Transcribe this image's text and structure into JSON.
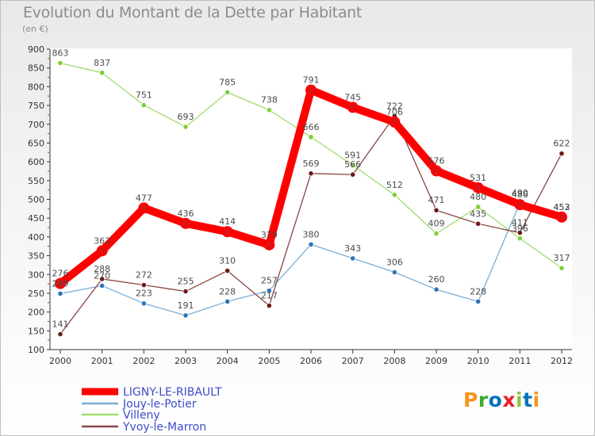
{
  "title": "Evolution du Montant de la Dette par Habitant",
  "subtitle": "(en €)",
  "logo": {
    "text": "Proxiti",
    "letter_colors": [
      "#f7941d",
      "#3aaa35",
      "#0072bc",
      "#ed1c24",
      "#8dc63f",
      "#0072bc",
      "#f7941d"
    ]
  },
  "chart_data": {
    "type": "line",
    "x": [
      2000,
      2001,
      2002,
      2003,
      2004,
      2005,
      2006,
      2007,
      2008,
      2009,
      2010,
      2011,
      2012
    ],
    "ylim": [
      100,
      900
    ],
    "yticks": [
      100,
      150,
      200,
      250,
      300,
      350,
      400,
      450,
      500,
      550,
      600,
      650,
      700,
      750,
      800,
      850,
      900
    ],
    "grid": false,
    "legend_position": "bottom-left",
    "series": [
      {
        "name": "LIGNY-LE-RIBAULT",
        "color": "#ff0000",
        "width": 10,
        "marker": "#cc0000",
        "values": [
          276,
          363,
          477,
          436,
          414,
          379,
          791,
          745,
          706,
          576,
          531,
          486,
          453
        ]
      },
      {
        "name": "Jouy-le-Potier",
        "color": "#7aaed6",
        "width": 1.3,
        "marker": "#2f74b5",
        "values": [
          249,
          270,
          223,
          191,
          228,
          257,
          380,
          343,
          306,
          260,
          228,
          490,
          452
        ]
      },
      {
        "name": "Villeny",
        "color": "#9fdc6c",
        "width": 1.3,
        "marker": "#7fcf3a",
        "values": [
          863,
          837,
          751,
          693,
          785,
          738,
          666,
          591,
          512,
          409,
          480,
          396,
          317
        ]
      },
      {
        "name": "Yvoy-le-Marron",
        "color": "#8a4545",
        "width": 1.3,
        "marker": "#6b1a1a",
        "values": [
          141,
          288,
          272,
          255,
          310,
          217,
          569,
          566,
          722,
          471,
          435,
          411,
          622
        ]
      }
    ],
    "labels": [
      {
        "series": 0,
        "show": [
          true,
          true,
          true,
          true,
          true,
          true,
          true,
          true,
          true,
          true,
          true,
          true,
          true
        ]
      },
      {
        "series": 1,
        "show": [
          true,
          true,
          true,
          true,
          true,
          true,
          true,
          true,
          true,
          true,
          true,
          true,
          true
        ]
      },
      {
        "series": 2,
        "show": [
          true,
          true,
          true,
          true,
          true,
          true,
          true,
          true,
          true,
          true,
          true,
          true,
          true
        ]
      },
      {
        "series": 3,
        "show": [
          true,
          true,
          true,
          true,
          true,
          true,
          true,
          true,
          true,
          true,
          true,
          true,
          true
        ]
      }
    ]
  }
}
